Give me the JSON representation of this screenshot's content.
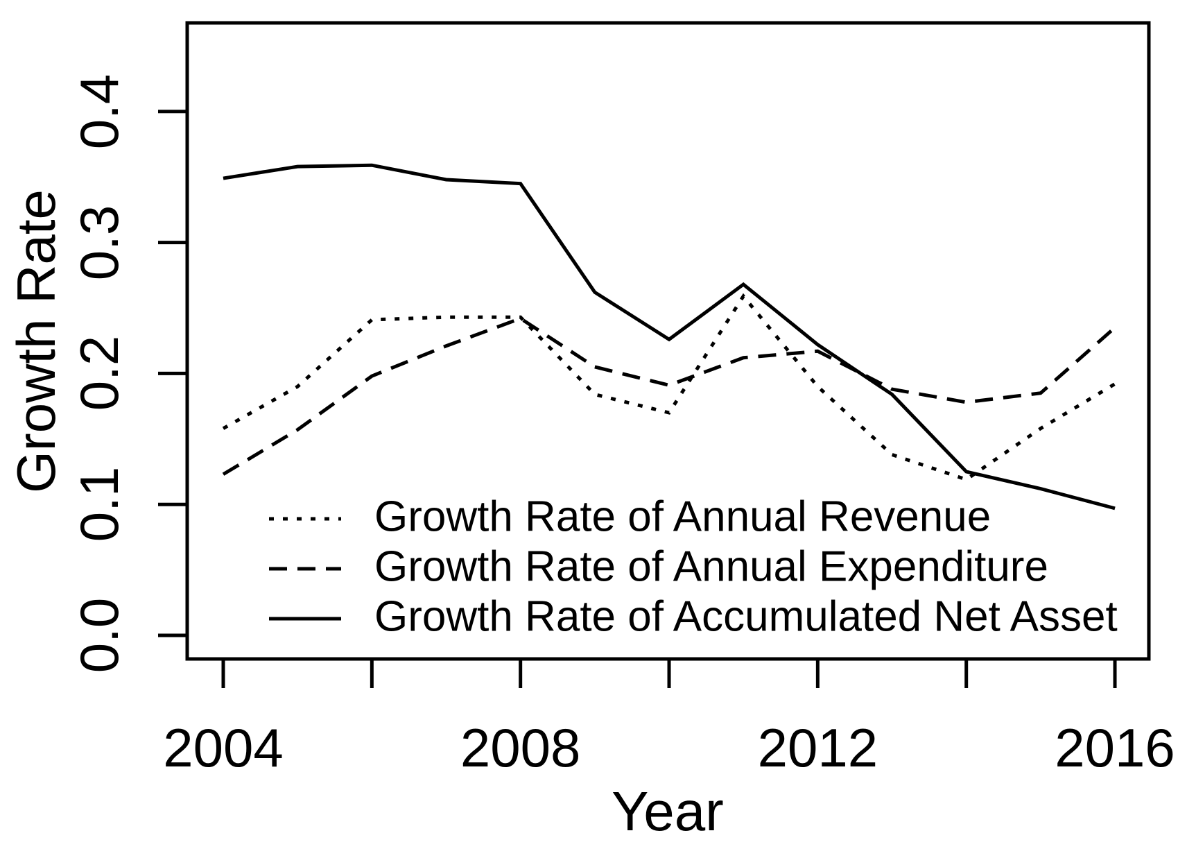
{
  "chart_data": {
    "type": "line",
    "title": "",
    "xlabel": "Year",
    "ylabel": "Growth Rate",
    "x": [
      2004,
      2005,
      2006,
      2007,
      2008,
      2009,
      2010,
      2011,
      2012,
      2013,
      2014,
      2015,
      2016
    ],
    "series": [
      {
        "name": "Growth Rate of Annual Revenue",
        "line_style": "dotted",
        "color": "#000000",
        "values": [
          0.158,
          0.19,
          0.241,
          0.243,
          0.243,
          0.184,
          0.17,
          0.259,
          0.19,
          0.138,
          0.119,
          0.158,
          0.192
        ]
      },
      {
        "name": "Growth Rate of Annual Expenditure",
        "line_style": "dashed",
        "color": "#000000",
        "values": [
          0.123,
          0.157,
          0.198,
          0.221,
          0.242,
          0.205,
          0.191,
          0.212,
          0.217,
          0.188,
          0.178,
          0.185,
          0.235
        ]
      },
      {
        "name": "Growth Rate of Accumulated Net Asset",
        "line_style": "solid",
        "color": "#000000",
        "values": [
          0.349,
          0.358,
          0.359,
          0.348,
          0.345,
          0.262,
          0.226,
          0.268,
          0.222,
          0.184,
          0.125,
          0.112,
          0.097
        ]
      }
    ],
    "x_ticks": [
      2004,
      2006,
      2008,
      2010,
      2012,
      2014,
      2016
    ],
    "x_tick_labels": [
      "2004",
      "2008",
      "2012",
      "2016"
    ],
    "x_tick_labels_at": [
      2004,
      2008,
      2012,
      2016
    ],
    "y_ticks": [
      "0.0",
      "0.1",
      "0.2",
      "0.3",
      "0.4"
    ],
    "y_tick_values": [
      0.0,
      0.1,
      0.2,
      0.3,
      0.4
    ],
    "xlim": [
      2003.5,
      2016.5
    ],
    "ylim": [
      -0.02,
      0.47
    ],
    "grid": false,
    "legend": {
      "position": "inside-bottom-left"
    },
    "colors": {
      "foreground": "#000000",
      "background": "#ffffff"
    }
  }
}
